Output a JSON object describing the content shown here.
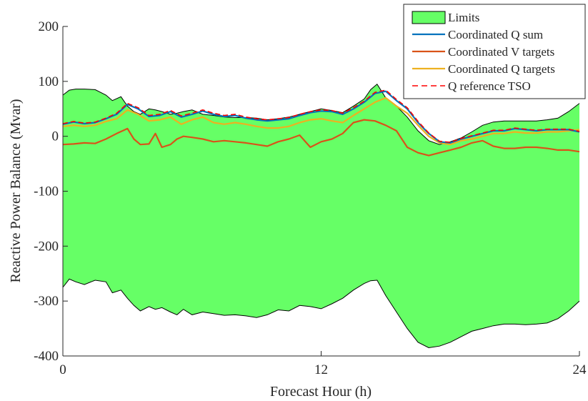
{
  "chart_data": {
    "type": "area",
    "xlabel": "Forecast Hour (h)",
    "ylabel": "Reactive Power Balance (Mvar)",
    "xlim": [
      0,
      24
    ],
    "ylim": [
      -400,
      200
    ],
    "xticks": [
      0,
      12,
      24
    ],
    "xtick_labels": [
      "0",
      "12",
      "24"
    ],
    "yticks": [
      200,
      100,
      0,
      -100,
      -200,
      -300,
      -400
    ],
    "ytick_labels": [
      "200",
      "100",
      "0",
      "-100",
      "-200",
      "-300",
      "-400"
    ],
    "grid": false,
    "legend_position": "top-right",
    "limits": {
      "name": "Limits",
      "color": "#66ff66",
      "x": [
        0,
        0.3,
        0.6,
        1.0,
        1.5,
        2.0,
        2.3,
        2.7,
        3.0,
        3.3,
        3.6,
        4.0,
        4.3,
        4.6,
        5.0,
        5.3,
        5.6,
        6.0,
        6.5,
        7.0,
        7.5,
        8.0,
        8.5,
        9.0,
        9.5,
        10.0,
        10.5,
        11.0,
        11.5,
        12.0,
        12.5,
        13.0,
        13.5,
        14.0,
        14.3,
        14.6,
        15.0,
        15.5,
        16.0,
        16.5,
        17.0,
        17.5,
        18.0,
        18.5,
        19.0,
        19.5,
        20.0,
        20.5,
        21.0,
        21.5,
        22.0,
        22.5,
        23.0,
        23.5,
        24.0
      ],
      "upper": [
        75,
        84,
        86,
        86,
        85,
        75,
        65,
        72,
        55,
        45,
        40,
        50,
        48,
        45,
        40,
        42,
        45,
        48,
        40,
        38,
        35,
        34,
        34,
        33,
        30,
        32,
        35,
        40,
        45,
        50,
        47,
        43,
        55,
        68,
        85,
        95,
        70,
        55,
        35,
        10,
        -8,
        -15,
        -10,
        -3,
        8,
        20,
        26,
        28,
        28,
        28,
        28,
        30,
        33,
        45,
        60
      ],
      "lower": [
        -275,
        -260,
        -265,
        -270,
        -262,
        -265,
        -285,
        -280,
        -295,
        -308,
        -318,
        -310,
        -315,
        -312,
        -320,
        -325,
        -315,
        -325,
        -320,
        -323,
        -326,
        -325,
        -327,
        -330,
        -325,
        -316,
        -318,
        -308,
        -310,
        -314,
        -305,
        -295,
        -280,
        -268,
        -263,
        -262,
        -290,
        -320,
        -350,
        -375,
        -385,
        -382,
        -375,
        -365,
        -355,
        -350,
        -345,
        -342,
        -342,
        -343,
        -342,
        -340,
        -332,
        -318,
        -300
      ]
    },
    "series": [
      {
        "name": "Coordinated Q sum",
        "color": "#0072bd",
        "dash": "solid",
        "x": [
          0,
          0.5,
          1.0,
          1.5,
          2.0,
          2.5,
          3.0,
          3.5,
          4.0,
          4.5,
          5.0,
          5.5,
          6.0,
          6.5,
          7.0,
          7.5,
          8.0,
          8.5,
          9.0,
          9.5,
          10.0,
          10.5,
          11.0,
          11.5,
          12.0,
          12.5,
          13.0,
          13.5,
          14.0,
          14.5,
          15.0,
          15.5,
          16.0,
          16.5,
          17.0,
          17.5,
          18.0,
          18.5,
          19.0,
          19.5,
          20.0,
          20.5,
          21.0,
          21.5,
          22.0,
          22.5,
          23.0,
          23.5,
          24.0
        ],
        "values": [
          22,
          26,
          23,
          25,
          32,
          40,
          58,
          50,
          36,
          38,
          45,
          35,
          40,
          46,
          40,
          36,
          38,
          33,
          30,
          28,
          30,
          32,
          38,
          43,
          46,
          45,
          40,
          50,
          62,
          78,
          82,
          65,
          50,
          25,
          5,
          -10,
          -12,
          -5,
          0,
          5,
          10,
          10,
          14,
          12,
          10,
          12,
          12,
          12,
          8
        ]
      },
      {
        "name": "Coordinated V targets",
        "color": "#d95319",
        "dash": "solid",
        "x": [
          0,
          0.5,
          1.0,
          1.5,
          2.0,
          2.5,
          3.0,
          3.3,
          3.6,
          4.0,
          4.3,
          4.6,
          5.0,
          5.3,
          5.6,
          6.0,
          6.5,
          7.0,
          7.5,
          8.0,
          8.5,
          9.0,
          9.5,
          10.0,
          10.5,
          11.0,
          11.5,
          12.0,
          12.5,
          13.0,
          13.5,
          14.0,
          14.5,
          15.0,
          15.5,
          16.0,
          16.5,
          17.0,
          17.5,
          18.0,
          18.5,
          19.0,
          19.5,
          20.0,
          20.5,
          21.0,
          21.5,
          22.0,
          22.5,
          23.0,
          23.5,
          24.0
        ],
        "values": [
          -15,
          -14,
          -12,
          -13,
          -5,
          5,
          14,
          -5,
          -15,
          -14,
          5,
          -20,
          -15,
          -5,
          0,
          -2,
          -5,
          -10,
          -8,
          -10,
          -12,
          -15,
          -18,
          -10,
          -5,
          2,
          -20,
          -10,
          -5,
          5,
          25,
          30,
          28,
          20,
          10,
          -20,
          -30,
          -35,
          -30,
          -25,
          -20,
          -12,
          -8,
          -18,
          -22,
          -22,
          -20,
          -20,
          -22,
          -25,
          -25,
          -28
        ]
      },
      {
        "name": "Coordinated Q targets",
        "color": "#edb120",
        "dash": "solid",
        "x": [
          0,
          0.5,
          1.0,
          1.5,
          2.0,
          2.5,
          3.0,
          3.5,
          4.0,
          4.5,
          5.0,
          5.5,
          6.0,
          6.5,
          7.0,
          7.5,
          8.0,
          8.5,
          9.0,
          9.5,
          10.0,
          10.5,
          11.0,
          11.5,
          12.0,
          12.5,
          13.0,
          13.5,
          14.0,
          14.5,
          15.0,
          15.5,
          16.0,
          16.5,
          17.0,
          17.5,
          18.0,
          18.5,
          19.0,
          19.5,
          20.0,
          20.5,
          21.0,
          21.5,
          22.0,
          22.5,
          23.0,
          23.5,
          24.0
        ],
        "values": [
          18,
          20,
          18,
          20,
          27,
          32,
          48,
          40,
          28,
          30,
          35,
          22,
          30,
          35,
          25,
          22,
          25,
          22,
          18,
          15,
          15,
          18,
          25,
          30,
          32,
          28,
          25,
          38,
          50,
          62,
          70,
          55,
          42,
          20,
          0,
          -12,
          -15,
          -8,
          -5,
          0,
          5,
          5,
          8,
          6,
          6,
          8,
          8,
          10,
          12
        ]
      },
      {
        "name": "Q reference TSO",
        "color": "#ff0000",
        "dash": "dashed",
        "x": [
          0,
          0.5,
          1.0,
          1.5,
          2.0,
          2.5,
          3.0,
          3.5,
          4.0,
          4.5,
          5.0,
          5.5,
          6.0,
          6.5,
          7.0,
          7.5,
          8.0,
          8.5,
          9.0,
          9.5,
          10.0,
          10.5,
          11.0,
          11.5,
          12.0,
          12.5,
          13.0,
          13.5,
          14.0,
          14.5,
          15.0,
          15.5,
          16.0,
          16.5,
          17.0,
          17.5,
          18.0,
          18.5,
          19.0,
          19.5,
          20.0,
          20.5,
          21.0,
          21.5,
          22.0,
          22.5,
          23.0,
          23.5,
          24.0
        ],
        "values": [
          23,
          27,
          24,
          26,
          33,
          42,
          60,
          52,
          38,
          40,
          47,
          37,
          42,
          48,
          42,
          38,
          40,
          35,
          32,
          30,
          32,
          34,
          40,
          45,
          48,
          47,
          42,
          52,
          64,
          80,
          84,
          67,
          52,
          27,
          6,
          -9,
          -11,
          -4,
          1,
          6,
          11,
          11,
          15,
          13,
          11,
          13,
          13,
          13,
          9
        ]
      }
    ]
  }
}
